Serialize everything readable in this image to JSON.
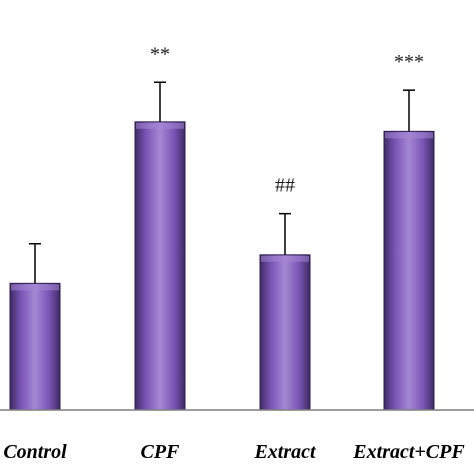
{
  "chart_data": {
    "type": "bar",
    "title": "",
    "xlabel": "",
    "ylabel": "",
    "categories": [
      "Control",
      "CPF",
      "Extract",
      "Extract+CPF"
    ],
    "series": [
      {
        "values": [
          4.0,
          9.1,
          4.9,
          8.8
        ],
        "errors": [
          1.25,
          1.25,
          1.3,
          1.3
        ],
        "annotations": [
          "",
          "**",
          "##",
          "***"
        ]
      }
    ],
    "ylim": [
      0,
      12
    ],
    "grid": false,
    "legend": "none",
    "colors": {
      "bar_face": "#7b55b5",
      "bar_light": "#a487d4",
      "bar_dark": "#3e2a66",
      "bar_edge": "#2b1d4a",
      "error_bar": "#000000",
      "axis": "#7f7f7f"
    }
  }
}
